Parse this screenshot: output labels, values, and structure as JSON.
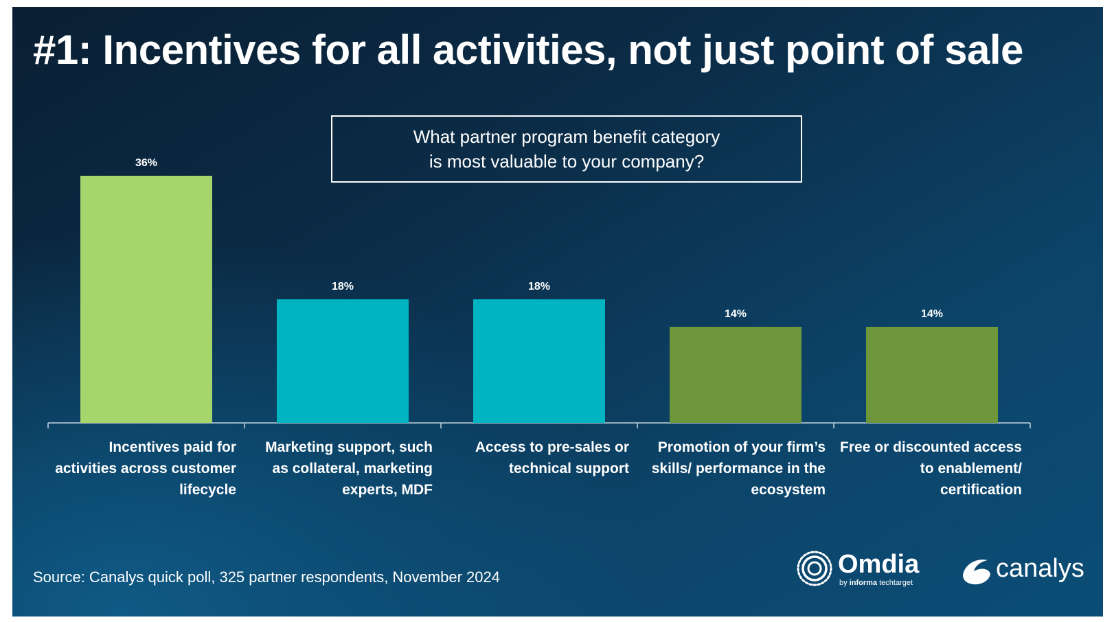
{
  "title": "#1: Incentives for all activities, not just point of sale",
  "question": {
    "line1": "What partner program benefit category",
    "line2": "is most valuable to your company?"
  },
  "source": "Source: Canalys quick poll, 325 partner respondents, November 2024",
  "logos": {
    "omdia": {
      "name": "Omdia",
      "tagline_by": "by",
      "tagline_brand": "informa",
      "tagline_rest": "techtarget"
    },
    "canalys": {
      "name": "canalys"
    }
  },
  "chart_data": {
    "type": "bar",
    "categories": [
      [
        "Incentives paid for",
        "activities across customer",
        "lifecycle"
      ],
      [
        "Marketing support, such",
        "as collateral, marketing",
        "experts, MDF"
      ],
      [
        "Access to pre-sales or",
        "technical support"
      ],
      [
        "Promotion of your firm’s",
        "skills/ performance in the",
        "ecosystem"
      ],
      [
        "Free or discounted access",
        "to enablement/",
        "certification"
      ]
    ],
    "values": [
      36,
      18,
      18,
      14,
      14
    ],
    "data_labels": [
      "36%",
      "18%",
      "18%",
      "14%",
      "14%"
    ],
    "colors": [
      "#a6d56b",
      "#00b4c2",
      "#00b4c2",
      "#6e963a",
      "#6e963a"
    ],
    "ylim": [
      0,
      36
    ],
    "grid": false
  }
}
